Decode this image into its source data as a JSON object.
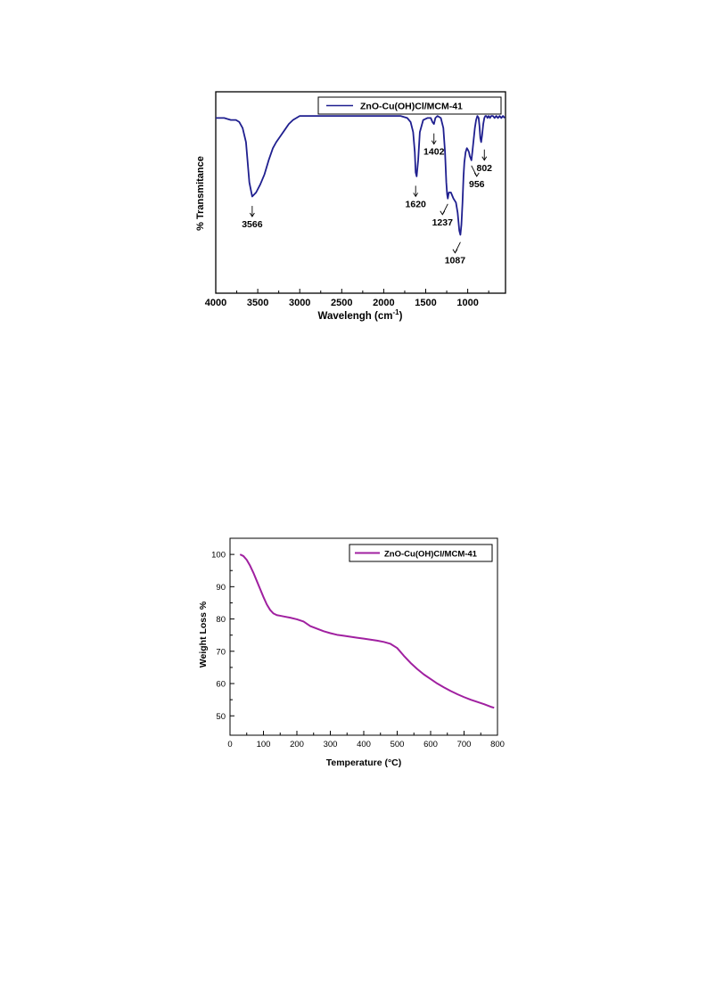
{
  "chart_data": [
    {
      "type": "line",
      "legend": {
        "entries": [
          "ZnO-Cu(OH)Cl/MCM-41"
        ],
        "placement": "top-right"
      },
      "xlabel": "Wavelengh (cm",
      "xlabel_superscript": "-1",
      "xlabel_suffix": ")",
      "ylabel": "% Transmitance",
      "xlim": [
        4000,
        550
      ],
      "x_reversed": true,
      "ylim": [
        0,
        100
      ],
      "y_tick_labels_shown": false,
      "x_ticks": [
        4000,
        3500,
        3000,
        2500,
        2000,
        1500,
        1000
      ],
      "x_tick_labels": [
        "4000",
        "3500",
        "3000",
        "2500",
        "2000",
        "1500",
        "1000"
      ],
      "grid": false,
      "series": [
        {
          "name": "ZnO-Cu(OH)Cl/MCM-41",
          "color": "#1f1f8f",
          "x": [
            4000,
            3900,
            3820,
            3760,
            3720,
            3680,
            3640,
            3600,
            3566,
            3520,
            3470,
            3420,
            3370,
            3320,
            3280,
            3230,
            3180,
            3130,
            3080,
            3040,
            3000,
            2960,
            2900,
            2800,
            2600,
            2400,
            2200,
            2000,
            1900,
            1800,
            1720,
            1680,
            1650,
            1630,
            1620,
            1608,
            1590,
            1570,
            1530,
            1480,
            1440,
            1420,
            1402,
            1385,
            1360,
            1320,
            1290,
            1270,
            1255,
            1245,
            1237,
            1225,
            1200,
            1170,
            1140,
            1120,
            1100,
            1087,
            1075,
            1062,
            1050,
            1040,
            1025,
            1010,
            995,
            985,
            975,
            965,
            956,
            945,
            930,
            915,
            900,
            885,
            870,
            860,
            850,
            840,
            830,
            815,
            802,
            790,
            778,
            765,
            750,
            735,
            720,
            700,
            680,
            660,
            640,
            620,
            600,
            580,
            560
          ],
          "y": [
            87,
            87,
            86,
            86,
            85,
            82,
            75,
            55,
            48,
            50,
            54,
            59,
            66,
            72,
            75,
            78,
            81,
            84,
            86,
            87,
            88,
            88,
            88,
            88,
            88,
            88,
            88,
            88,
            88,
            88,
            87,
            85,
            80,
            70,
            60,
            58,
            66,
            80,
            86,
            87,
            87,
            85,
            84,
            87,
            88,
            87,
            82,
            70,
            55,
            49,
            47,
            50,
            50,
            47,
            45,
            40,
            31,
            29,
            34,
            45,
            58,
            65,
            70,
            72,
            71,
            70,
            68,
            67,
            66,
            70,
            76,
            82,
            86,
            88,
            87,
            83,
            77,
            75,
            78,
            84,
            87,
            88,
            88,
            87,
            88,
            87,
            88,
            88,
            87,
            88,
            87,
            88,
            87,
            88,
            87
          ]
        }
      ],
      "annotations": [
        {
          "text": "3566",
          "x": 3566,
          "y": 46,
          "dir": "down"
        },
        {
          "text": "1620",
          "x": 1620,
          "y": 56,
          "dir": "down"
        },
        {
          "text": "1402",
          "x": 1402,
          "y": 82,
          "dir": "down"
        },
        {
          "text": "1237",
          "x": 1237,
          "y": 47,
          "dir": "down-left"
        },
        {
          "text": "1087",
          "x": 1087,
          "y": 28,
          "dir": "down-left"
        },
        {
          "text": "956",
          "x": 956,
          "y": 66,
          "dir": "down-right"
        },
        {
          "text": "802",
          "x": 802,
          "y": 74,
          "dir": "down"
        }
      ]
    },
    {
      "type": "line",
      "legend": {
        "entries": [
          "ZnO-Cu(OH)Cl/MCM-41"
        ],
        "placement": "top-right"
      },
      "xlabel": "Temperature (°C)",
      "ylabel": "Weight Loss %",
      "xlim": [
        0,
        800
      ],
      "ylim": [
        44,
        105
      ],
      "x_ticks": [
        0,
        100,
        200,
        300,
        400,
        500,
        600,
        700,
        800
      ],
      "x_tick_labels": [
        "0",
        "100",
        "200",
        "300",
        "400",
        "500",
        "600",
        "700",
        "800"
      ],
      "y_ticks": [
        50,
        60,
        70,
        80,
        90,
        100
      ],
      "y_tick_labels": [
        "50",
        "60",
        "70",
        "80",
        "90",
        "100"
      ],
      "grid": false,
      "series": [
        {
          "name": "ZnO-Cu(OH)Cl/MCM-41",
          "color": "#a020a0",
          "x": [
            30,
            40,
            50,
            60,
            70,
            80,
            90,
            100,
            110,
            120,
            130,
            140,
            150,
            160,
            180,
            200,
            220,
            240,
            260,
            280,
            300,
            320,
            340,
            360,
            380,
            400,
            420,
            440,
            460,
            480,
            500,
            520,
            540,
            560,
            580,
            600,
            620,
            640,
            660,
            680,
            700,
            720,
            740,
            760,
            780,
            790
          ],
          "y": [
            100,
            99.5,
            98.3,
            96.5,
            94.3,
            91.8,
            89.3,
            86.8,
            84.5,
            82.8,
            81.7,
            81.2,
            81.0,
            80.8,
            80.4,
            79.9,
            79.2,
            77.8,
            77.0,
            76.2,
            75.6,
            75.1,
            74.8,
            74.5,
            74.2,
            73.9,
            73.6,
            73.3,
            72.9,
            72.3,
            71.0,
            68.6,
            66.4,
            64.5,
            62.8,
            61.4,
            60.0,
            58.8,
            57.7,
            56.7,
            55.8,
            55.0,
            54.3,
            53.6,
            52.8,
            52.5
          ]
        }
      ]
    }
  ]
}
